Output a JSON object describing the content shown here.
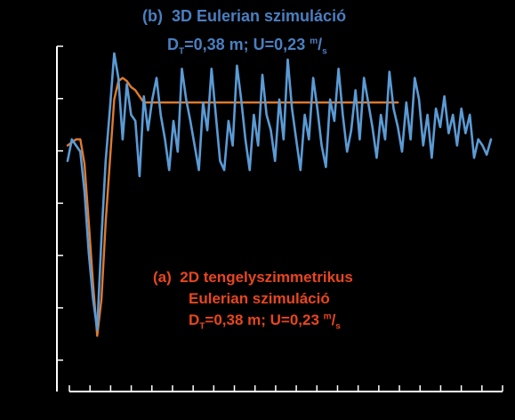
{
  "colors": {
    "background": "#000000",
    "series_3d": "#5b9bd5",
    "series_2d": "#e07a2e",
    "title_3d": "#4a7fc1",
    "title_2d": "#e8461e",
    "axis": "#ffffff"
  },
  "labels": {
    "b_prefix": "(b)",
    "b_title": "3D Eulerian szimuláció",
    "b_params_pre": "D",
    "b_params_sub": "T",
    "b_params_mid": "=0,38 m; U=0,23 ",
    "b_params_sup": "m",
    "b_params_slash": "/",
    "b_params_sub2": "s",
    "a_prefix": "(a)",
    "a_line1": "2D tengelyszimmetrikus",
    "a_line2": "Eulerian szimuláció",
    "a_params_pre": "D",
    "a_params_sub": "T",
    "a_params_mid": "=0,38 m; U=0,23 ",
    "a_params_sup": "m",
    "a_params_slash": "/",
    "a_params_sub2": "s"
  },
  "chart_data": {
    "type": "line",
    "grid": false,
    "ylim": [
      0,
      100
    ],
    "xlim": [
      0,
      100
    ],
    "yticks_count": 7,
    "xticks_count": 22,
    "series": [
      {
        "name": "(a) 2D tengelyszimmetrikus Eulerian szimuláció",
        "color": "#e07a2e",
        "points": [
          [
            0,
            70
          ],
          [
            2,
            72
          ],
          [
            3,
            72
          ],
          [
            4,
            64
          ],
          [
            5,
            45
          ],
          [
            6,
            25
          ],
          [
            7,
            8
          ],
          [
            8,
            20
          ],
          [
            9,
            45
          ],
          [
            10,
            65
          ],
          [
            11,
            85
          ],
          [
            12,
            91
          ],
          [
            13,
            92
          ],
          [
            14,
            91
          ],
          [
            15,
            89
          ],
          [
            16,
            88
          ],
          [
            17,
            86
          ],
          [
            18,
            84
          ],
          [
            19,
            84
          ],
          [
            22,
            84
          ],
          [
            30,
            84
          ],
          [
            40,
            84
          ],
          [
            50,
            84
          ],
          [
            60,
            84
          ],
          [
            70,
            84
          ],
          [
            78,
            84
          ]
        ]
      },
      {
        "name": "(b) 3D Eulerian szimuláció",
        "color": "#5b9bd5",
        "points": [
          [
            0,
            65
          ],
          [
            1,
            72
          ],
          [
            2,
            70
          ],
          [
            3,
            68
          ],
          [
            4,
            55
          ],
          [
            5,
            35
          ],
          [
            6,
            20
          ],
          [
            7,
            10
          ],
          [
            8,
            40
          ],
          [
            9,
            65
          ],
          [
            10,
            82
          ],
          [
            11,
            100
          ],
          [
            12,
            92
          ],
          [
            13,
            72
          ],
          [
            14,
            90
          ],
          [
            15,
            80
          ],
          [
            16,
            78
          ],
          [
            17,
            60
          ],
          [
            18,
            86
          ],
          [
            19,
            75
          ],
          [
            20,
            85
          ],
          [
            21,
            92
          ],
          [
            22,
            80
          ],
          [
            23,
            72
          ],
          [
            24,
            62
          ],
          [
            25,
            78
          ],
          [
            26,
            68
          ],
          [
            27,
            95
          ],
          [
            28,
            85
          ],
          [
            29,
            78
          ],
          [
            30,
            70
          ],
          [
            31,
            62
          ],
          [
            32,
            84
          ],
          [
            33,
            75
          ],
          [
            34,
            95
          ],
          [
            35,
            80
          ],
          [
            36,
            65
          ],
          [
            37,
            62
          ],
          [
            38,
            78
          ],
          [
            39,
            70
          ],
          [
            40,
            96
          ],
          [
            41,
            85
          ],
          [
            42,
            72
          ],
          [
            43,
            62
          ],
          [
            44,
            80
          ],
          [
            45,
            70
          ],
          [
            46,
            93
          ],
          [
            47,
            80
          ],
          [
            48,
            75
          ],
          [
            49,
            65
          ],
          [
            50,
            85
          ],
          [
            51,
            72
          ],
          [
            52,
            98
          ],
          [
            53,
            82
          ],
          [
            54,
            72
          ],
          [
            55,
            62
          ],
          [
            56,
            80
          ],
          [
            57,
            72
          ],
          [
            58,
            92
          ],
          [
            59,
            82
          ],
          [
            60,
            70
          ],
          [
            61,
            63
          ],
          [
            62,
            85
          ],
          [
            63,
            78
          ],
          [
            64,
            95
          ],
          [
            65,
            80
          ],
          [
            66,
            68
          ],
          [
            67,
            75
          ],
          [
            68,
            88
          ],
          [
            69,
            72
          ],
          [
            70,
            92
          ],
          [
            71,
            84
          ],
          [
            72,
            76
          ],
          [
            73,
            66
          ],
          [
            74,
            80
          ],
          [
            75,
            72
          ],
          [
            76,
            94
          ],
          [
            77,
            82
          ],
          [
            78,
            76
          ],
          [
            79,
            68
          ],
          [
            80,
            84
          ],
          [
            81,
            72
          ],
          [
            82,
            92
          ],
          [
            83,
            85
          ],
          [
            84,
            70
          ],
          [
            85,
            80
          ],
          [
            86,
            66
          ],
          [
            87,
            82
          ],
          [
            88,
            76
          ],
          [
            89,
            86
          ],
          [
            90,
            74
          ],
          [
            91,
            80
          ],
          [
            92,
            70
          ],
          [
            93,
            82
          ],
          [
            94,
            74
          ],
          [
            95,
            80
          ],
          [
            96,
            66
          ],
          [
            97,
            72
          ],
          [
            98,
            70
          ],
          [
            99,
            67
          ],
          [
            100,
            72
          ]
        ]
      }
    ]
  }
}
